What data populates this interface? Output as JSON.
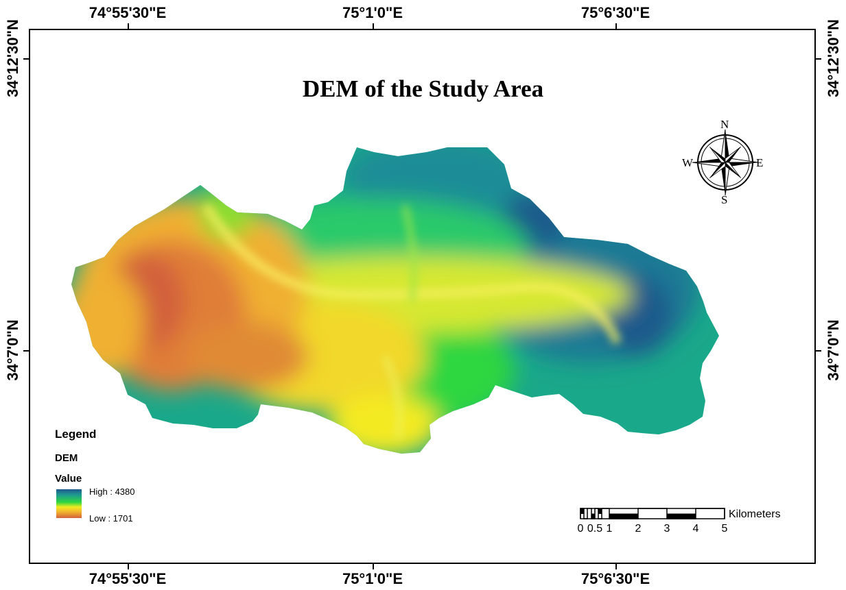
{
  "map": {
    "title": "DEM of the Study Area",
    "graticule": {
      "longitudes": [
        "74°55'30\"E",
        "75°1'0\"E",
        "75°6'30\"E"
      ],
      "latitudes": [
        "34°12'30\"N",
        "34°7'0\"N"
      ]
    },
    "legend": {
      "heading": "Legend",
      "layer": "DEM",
      "field": "Value",
      "high_label": "High : 4380",
      "low_label": "Low : 1701",
      "ramp_colors": [
        "#1e5a8c",
        "#1f9a90",
        "#2fd640",
        "#f4ea20",
        "#f0b030",
        "#d2603a"
      ]
    },
    "scale_bar": {
      "ticks": [
        "0",
        "0.5",
        "1",
        "2",
        "3",
        "4",
        "5"
      ],
      "unit": "Kilometers"
    },
    "north_arrow": {
      "n": "N",
      "s": "S",
      "e": "E",
      "w": "W"
    },
    "colors": {
      "high": "#1e5a8c",
      "mid_high": "#1f9a90",
      "mid": "#2fd640",
      "mid_low": "#f4ea20",
      "low": "#d2603a"
    }
  }
}
